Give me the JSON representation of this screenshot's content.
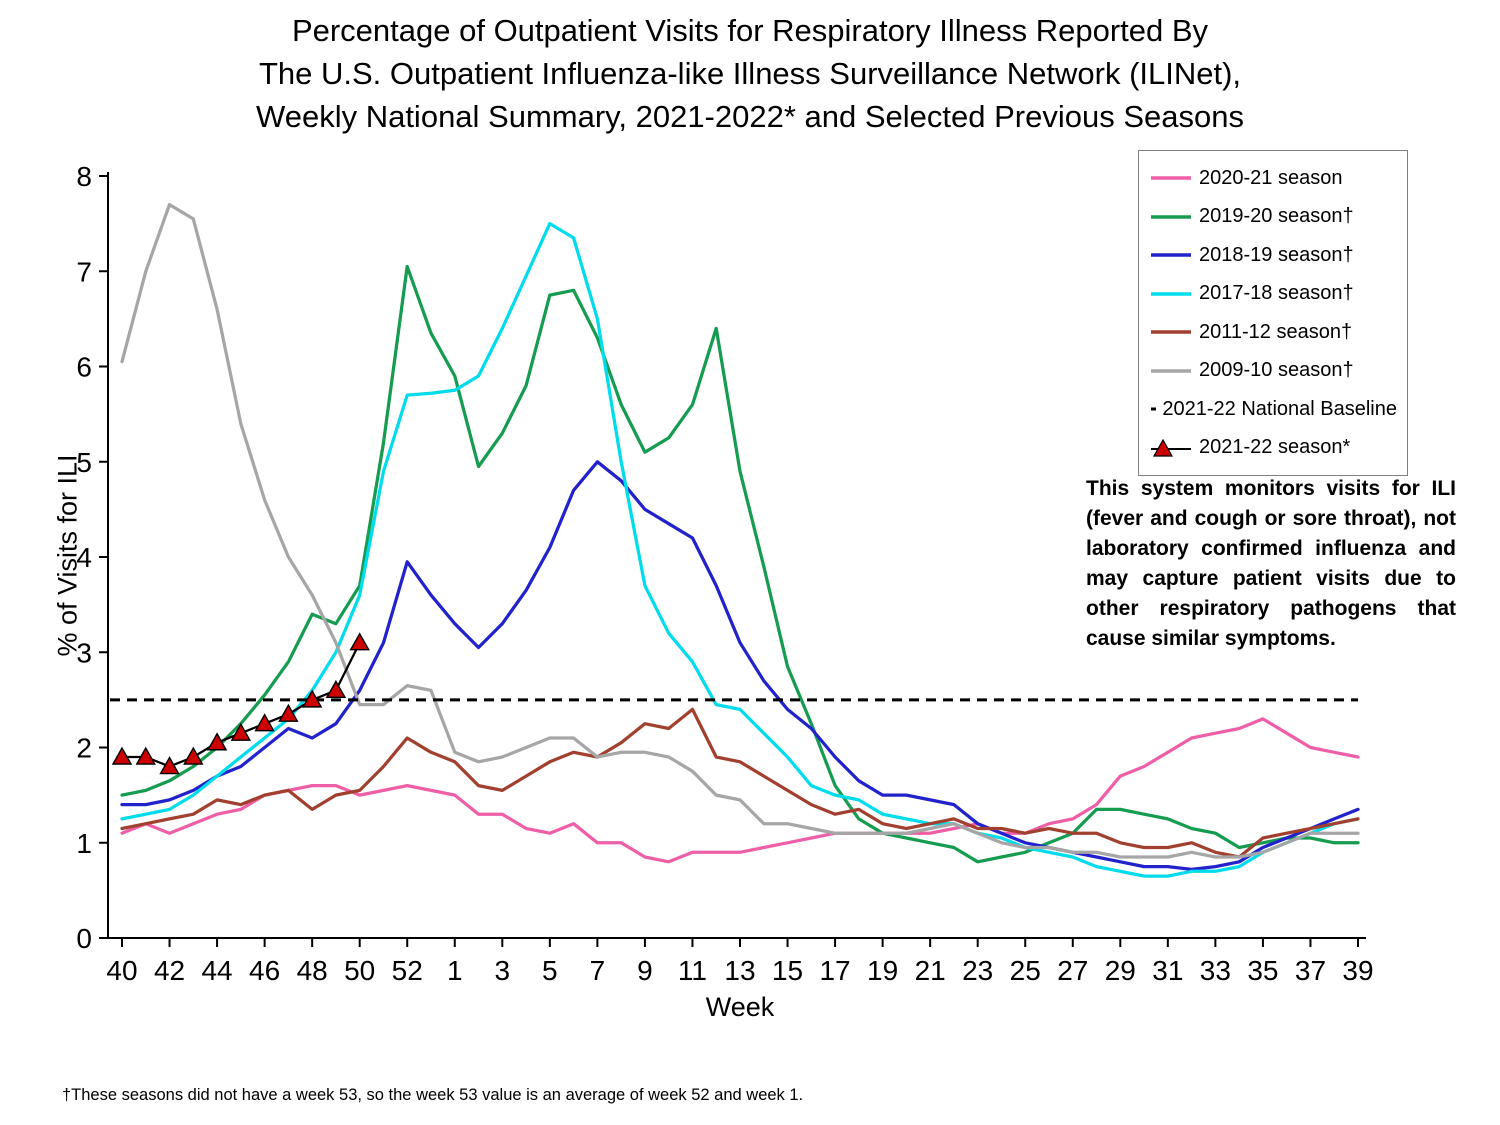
{
  "title": {
    "line1": "Percentage of Outpatient Visits for Respiratory Illness Reported By",
    "line2": "The U.S. Outpatient Influenza-like Illness Surveillance Network (ILINet),",
    "line3": "Weekly National Summary, 2021-2022* and Selected Previous Seasons"
  },
  "axes": {
    "y_label": "% of Visits for ILI",
    "x_label": "Week",
    "y_ticks": [
      0,
      1,
      2,
      3,
      4,
      5,
      6,
      7,
      8
    ]
  },
  "annotation": {
    "text": "This system monitors visits for ILI (fever and cough or sore throat), not laboratory confirmed influenza and may capture patient visits due to other respiratory pathogens that cause similar symptoms."
  },
  "footnote": {
    "text": "†These seasons did not have a week 53, so the week 53 value is an average of week 52 and week 1."
  },
  "chart_data": {
    "type": "line",
    "title": "Percentage of Outpatient Visits for Respiratory Illness Reported By The U.S. Outpatient Influenza-like Illness Surveillance Network (ILINet), Weekly National Summary, 2021-2022* and Selected Previous Seasons",
    "xlabel": "Week",
    "ylabel": "% of Visits for ILI",
    "ylim": [
      0,
      8
    ],
    "x_weeks": [
      40,
      41,
      42,
      43,
      44,
      45,
      46,
      47,
      48,
      49,
      50,
      51,
      52,
      53,
      1,
      2,
      3,
      4,
      5,
      6,
      7,
      8,
      9,
      10,
      11,
      12,
      13,
      14,
      15,
      16,
      17,
      18,
      19,
      20,
      21,
      22,
      23,
      24,
      25,
      26,
      27,
      28,
      29,
      30,
      31,
      32,
      33,
      34,
      35,
      36,
      37,
      38,
      39
    ],
    "series": [
      {
        "name": "2020-21 season",
        "color": "#EF5FA7",
        "style": "line",
        "values": [
          1.1,
          1.2,
          1.1,
          1.2,
          1.3,
          1.35,
          1.5,
          1.55,
          1.6,
          1.6,
          1.5,
          1.55,
          1.6,
          1.55,
          1.5,
          1.3,
          1.3,
          1.15,
          1.1,
          1.2,
          1.0,
          1.0,
          0.85,
          0.8,
          0.9,
          0.9,
          0.9,
          0.95,
          1.0,
          1.05,
          1.1,
          1.1,
          1.1,
          1.1,
          1.1,
          1.15,
          1.2,
          1.1,
          1.1,
          1.2,
          1.25,
          1.4,
          1.7,
          1.8,
          1.95,
          2.1,
          2.15,
          2.2,
          2.3,
          2.15,
          2.0,
          1.95,
          1.9
        ]
      },
      {
        "name": "2019-20 season†",
        "color": "#169C50",
        "style": "line",
        "values": [
          1.5,
          1.55,
          1.65,
          1.8,
          2.0,
          2.25,
          2.55,
          2.9,
          3.4,
          3.3,
          3.7,
          5.2,
          7.05,
          6.35,
          5.9,
          4.95,
          5.3,
          5.8,
          6.75,
          6.8,
          6.3,
          5.6,
          5.1,
          5.25,
          5.6,
          6.4,
          4.9,
          3.9,
          2.85,
          2.25,
          1.6,
          1.25,
          1.1,
          1.05,
          1.0,
          0.95,
          0.8,
          0.85,
          0.9,
          1.0,
          1.1,
          1.35,
          1.35,
          1.3,
          1.25,
          1.15,
          1.1,
          0.95,
          1.0,
          1.05,
          1.05,
          1.0,
          1.0
        ]
      },
      {
        "name": "2018-19 season†",
        "color": "#2222CC",
        "style": "line",
        "values": [
          1.4,
          1.4,
          1.45,
          1.55,
          1.7,
          1.8,
          2.0,
          2.2,
          2.1,
          2.25,
          2.6,
          3.1,
          3.95,
          3.6,
          3.3,
          3.05,
          3.3,
          3.65,
          4.1,
          4.7,
          5.0,
          4.8,
          4.5,
          4.35,
          4.2,
          3.7,
          3.1,
          2.7,
          2.4,
          2.2,
          1.9,
          1.65,
          1.5,
          1.5,
          1.45,
          1.4,
          1.2,
          1.1,
          1.0,
          0.95,
          0.9,
          0.85,
          0.8,
          0.75,
          0.75,
          0.72,
          0.75,
          0.8,
          0.95,
          1.05,
          1.15,
          1.25,
          1.35
        ]
      },
      {
        "name": "2017-18 season†",
        "color": "#00DCEC",
        "style": "line",
        "values": [
          1.25,
          1.3,
          1.35,
          1.5,
          1.7,
          1.9,
          2.1,
          2.3,
          2.6,
          3.0,
          3.6,
          4.9,
          5.7,
          5.72,
          5.75,
          5.9,
          6.4,
          6.95,
          7.5,
          7.35,
          6.5,
          5.0,
          3.7,
          3.2,
          2.9,
          2.45,
          2.4,
          2.15,
          1.9,
          1.6,
          1.5,
          1.45,
          1.3,
          1.25,
          1.2,
          1.2,
          1.1,
          1.05,
          0.95,
          0.9,
          0.85,
          0.75,
          0.7,
          0.65,
          0.65,
          0.7,
          0.7,
          0.75,
          0.9,
          1.0,
          1.1,
          1.2,
          1.25
        ]
      },
      {
        "name": "2011-12 season†",
        "color": "#A2402F",
        "style": "line",
        "values": [
          1.15,
          1.2,
          1.25,
          1.3,
          1.45,
          1.4,
          1.5,
          1.55,
          1.35,
          1.5,
          1.55,
          1.8,
          2.1,
          1.95,
          1.85,
          1.6,
          1.55,
          1.7,
          1.85,
          1.95,
          1.9,
          2.05,
          2.25,
          2.2,
          2.4,
          1.9,
          1.85,
          1.7,
          1.55,
          1.4,
          1.3,
          1.35,
          1.2,
          1.15,
          1.2,
          1.25,
          1.15,
          1.15,
          1.1,
          1.15,
          1.1,
          1.1,
          1.0,
          0.95,
          0.95,
          1.0,
          0.9,
          0.85,
          1.05,
          1.1,
          1.15,
          1.2,
          1.25
        ]
      },
      {
        "name": "2009-10 season†",
        "color": "#A6A6A6",
        "style": "line",
        "values": [
          6.05,
          7.0,
          7.7,
          7.55,
          6.6,
          5.4,
          4.6,
          4.0,
          3.6,
          3.1,
          2.45,
          2.45,
          2.65,
          2.6,
          1.95,
          1.85,
          1.9,
          2.0,
          2.1,
          2.1,
          1.9,
          1.95,
          1.95,
          1.9,
          1.75,
          1.5,
          1.45,
          1.2,
          1.2,
          1.15,
          1.1,
          1.1,
          1.1,
          1.1,
          1.15,
          1.2,
          1.1,
          1.0,
          0.95,
          0.95,
          0.9,
          0.9,
          0.85,
          0.85,
          0.85,
          0.9,
          0.85,
          0.85,
          0.9,
          1.0,
          1.1,
          1.1,
          1.1
        ]
      },
      {
        "name": "2021-22 National Baseline",
        "color": "#000000",
        "style": "dashed-hline",
        "value": 2.5
      },
      {
        "name": "2021-22 season*",
        "color": "#000000",
        "marker_color": "#CC0000",
        "style": "line-markers",
        "values": [
          1.9,
          1.9,
          1.8,
          1.9,
          2.05,
          2.15,
          2.25,
          2.35,
          2.5,
          2.6,
          3.1,
          null,
          null,
          null,
          null,
          null,
          null,
          null,
          null,
          null,
          null,
          null,
          null,
          null,
          null,
          null,
          null,
          null,
          null,
          null,
          null,
          null,
          null,
          null,
          null,
          null,
          null,
          null,
          null,
          null,
          null,
          null,
          null,
          null,
          null,
          null,
          null,
          null,
          null,
          null,
          null,
          null,
          null
        ]
      }
    ]
  }
}
